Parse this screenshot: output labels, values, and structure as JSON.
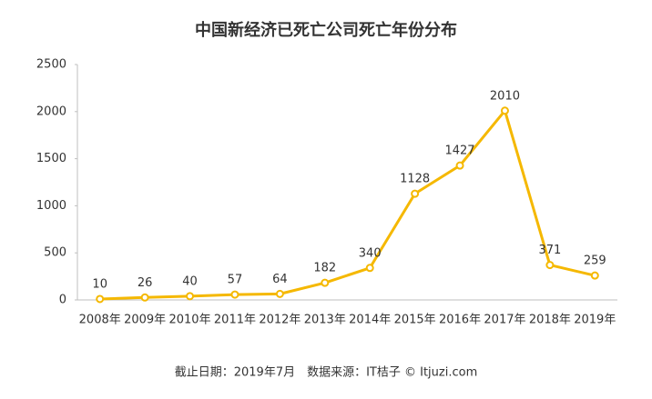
{
  "chart_data": {
    "type": "line",
    "title": "中国新经济已死亡公司死亡年份分布",
    "categories": [
      "2008年",
      "2009年",
      "2010年",
      "2011年",
      "2012年",
      "2013年",
      "2014年",
      "2015年",
      "2016年",
      "2017年",
      "2018年",
      "2019年"
    ],
    "values": [
      10,
      26,
      40,
      57,
      64,
      182,
      340,
      1128,
      1427,
      2010,
      371,
      259
    ],
    "color": "#f5b800",
    "ylim": [
      0,
      2500
    ],
    "yticks": [
      0,
      500,
      1000,
      1500,
      2000,
      2500
    ],
    "grid": false,
    "source": "截止日期：2019年7月　数据来源：IT桔子 © Itjuzi.com"
  }
}
